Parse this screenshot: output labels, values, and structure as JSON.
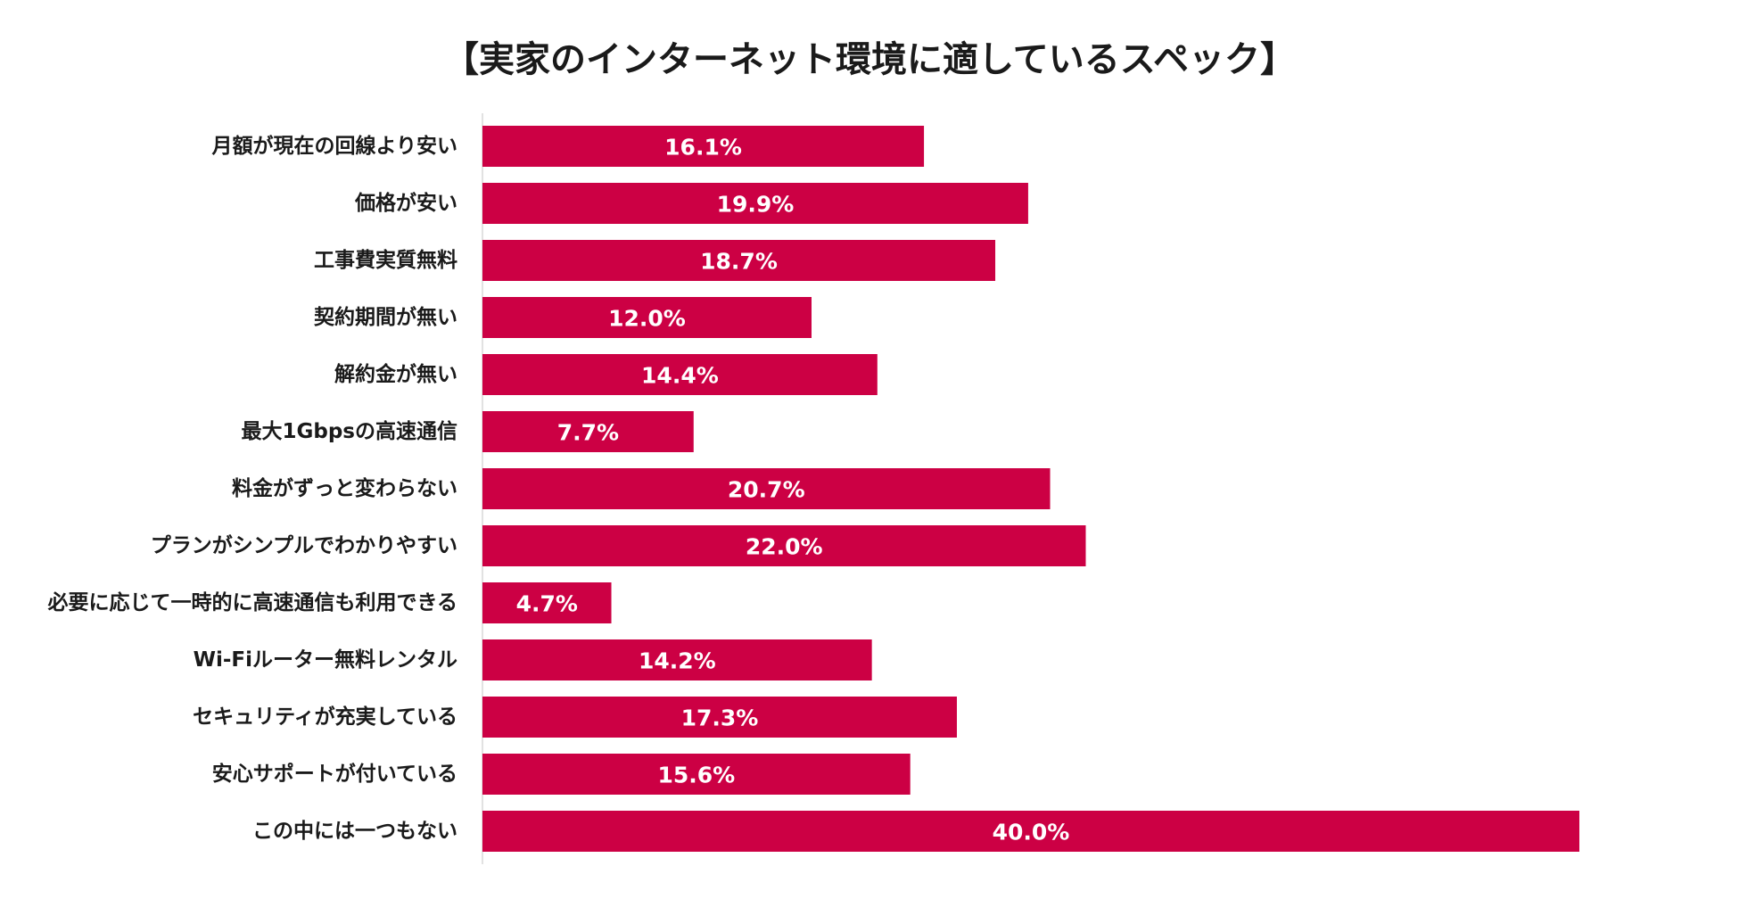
{
  "chart_data": {
    "type": "bar",
    "orientation": "horizontal",
    "title": "【実家のインターネット環境に適しているスペック】",
    "categories": [
      "月額が現在の回線より安い",
      "価格が安い",
      "工事費実質無料",
      "契約期間が無い",
      "解約金が無い",
      "最大1Gbpsの高速通信",
      "料金がずっと変わらない",
      "プランがシンプルでわかりやすい",
      "必要に応じて一時的に高速通信も利用できる",
      "Wi-Fiルーター無料レンタル",
      "セキュリティが充実している",
      "安心サポートが付いている",
      "この中には一つもない"
    ],
    "values": [
      16.1,
      19.9,
      18.7,
      12.0,
      14.4,
      7.7,
      20.7,
      22.0,
      4.7,
      14.2,
      17.3,
      15.6,
      40.0
    ],
    "value_labels": [
      "16.1%",
      "19.9%",
      "18.7%",
      "12.0%",
      "14.4%",
      "7.7%",
      "20.7%",
      "22.0%",
      "4.7%",
      "14.2%",
      "17.3%",
      "15.6%",
      "40.0%"
    ],
    "xlim": [
      0,
      40
    ],
    "grid": false,
    "bar_color": "#cc0044",
    "label_color": "#ffffff"
  }
}
